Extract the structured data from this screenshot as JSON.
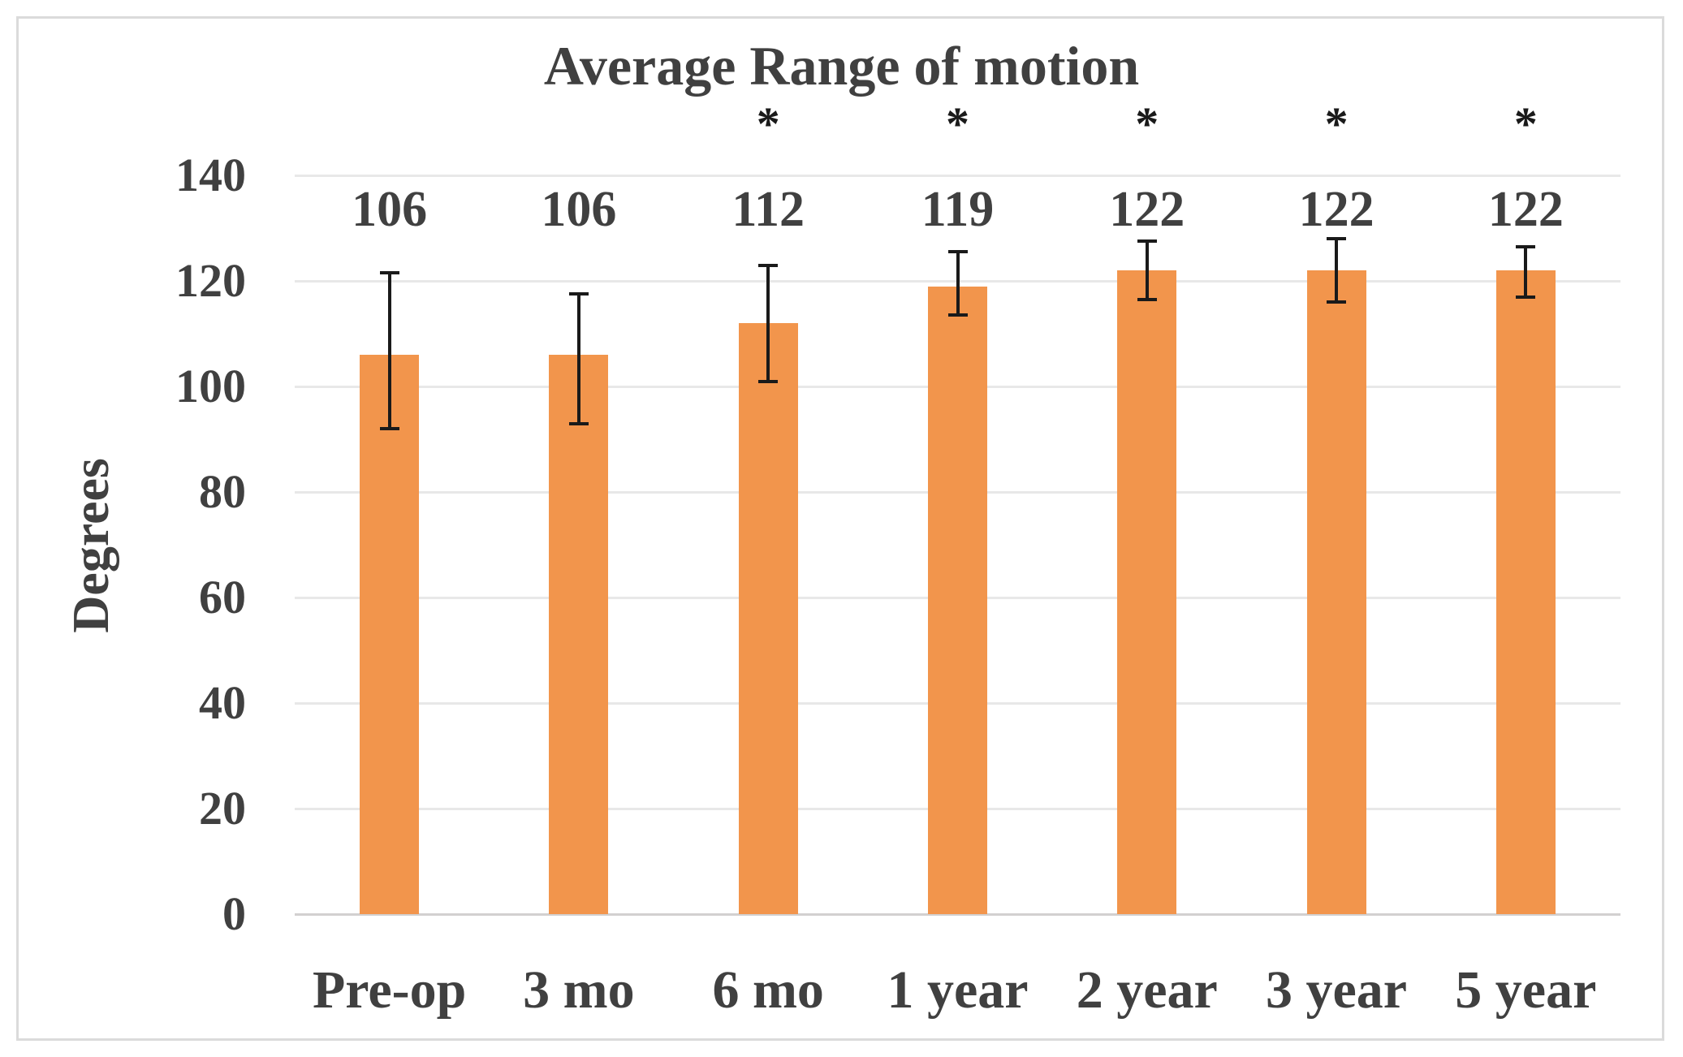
{
  "chart_data": {
    "type": "bar",
    "title": "Average Range of motion",
    "ylabel": "Degrees",
    "xlabel": "",
    "categories": [
      "Pre-op",
      "3 mo",
      "6 mo",
      "1 year",
      "2 year",
      "3 year",
      "5 year"
    ],
    "values": [
      106,
      106,
      112,
      119,
      122,
      122,
      122
    ],
    "data_labels": [
      "106",
      "106",
      "112",
      "119",
      "122",
      "122",
      "122"
    ],
    "error_high": [
      121.5,
      117.5,
      123,
      125.5,
      127.5,
      128,
      126.5
    ],
    "error_low": [
      92,
      93,
      101,
      113.5,
      116.5,
      116,
      117
    ],
    "significance": [
      false,
      false,
      true,
      true,
      true,
      true,
      true
    ],
    "significance_marker": "*",
    "ylim": [
      0,
      140
    ],
    "ytick_step": 20,
    "yticks": [
      "140",
      "120",
      "100",
      "80",
      "60",
      "40",
      "20",
      "0"
    ],
    "grid": true,
    "legend": "none",
    "colors": {
      "bar": "#F2954C",
      "text": "#404040",
      "gridline": "#E8E8E8",
      "axis_line": "#D2D0D0",
      "error_bar": "#1A1A1A",
      "border": "#DBDBDB",
      "background": "#FFFFFF"
    }
  }
}
